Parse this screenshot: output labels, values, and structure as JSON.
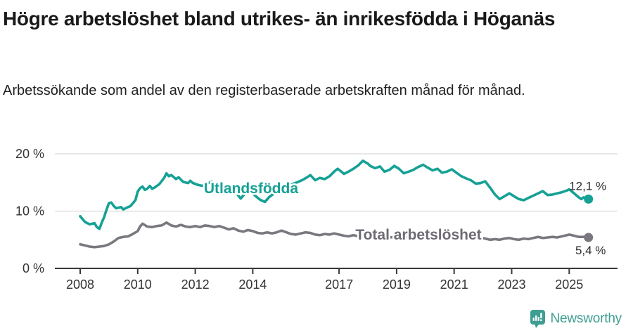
{
  "header": {
    "title": "Högre arbetslöshet bland utrikes- än inrikesfödda i Höganäs",
    "subtitle": "Arbetssökande som andel av den registerbaserade arbetskraften månad för månad."
  },
  "chart_data": {
    "type": "line",
    "title": "Högre arbetslöshet bland utrikes- än inrikesfödda i Höganäs",
    "xlabel": "",
    "ylabel": "",
    "grid": "horizontal-only",
    "legend_position": "inline-labels",
    "xlim": [
      2007.12,
      2026.68
    ],
    "ylim": [
      0,
      20
    ],
    "x_ticks": [
      2008,
      2010,
      2012,
      2014,
      2017,
      2019,
      2021,
      2023,
      2025
    ],
    "y_ticks": [
      0,
      10,
      20
    ],
    "y_tick_suffix": " %",
    "axis_color": "#3a3a3a",
    "grid_color": "#d9d9d9",
    "tick_text_color": "#333333",
    "end_label_color": "#2d2d2d",
    "series": [
      {
        "name": "Utlandsfödda",
        "color": "#16a195",
        "label_color": "#16a195",
        "end_label": "12,1 %",
        "end_value": 12.1,
        "end_label_side": "above",
        "label_anchor": {
          "x": 2013.94,
          "y": 14.0
        },
        "points": [
          [
            2008.0,
            9.1
          ],
          [
            2008.17,
            8.1
          ],
          [
            2008.33,
            7.7
          ],
          [
            2008.5,
            7.9
          ],
          [
            2008.58,
            7.2
          ],
          [
            2008.67,
            6.9
          ],
          [
            2008.75,
            8.0
          ],
          [
            2008.83,
            8.9
          ],
          [
            2008.92,
            10.3
          ],
          [
            2009.0,
            11.4
          ],
          [
            2009.08,
            11.5
          ],
          [
            2009.17,
            10.9
          ],
          [
            2009.25,
            10.5
          ],
          [
            2009.42,
            10.7
          ],
          [
            2009.5,
            10.3
          ],
          [
            2009.58,
            10.5
          ],
          [
            2009.75,
            10.9
          ],
          [
            2009.92,
            11.9
          ],
          [
            2010.0,
            13.4
          ],
          [
            2010.08,
            14.0
          ],
          [
            2010.17,
            14.3
          ],
          [
            2010.25,
            13.7
          ],
          [
            2010.33,
            13.9
          ],
          [
            2010.42,
            14.4
          ],
          [
            2010.5,
            13.9
          ],
          [
            2010.58,
            14.1
          ],
          [
            2010.75,
            14.7
          ],
          [
            2010.92,
            15.8
          ],
          [
            2011.0,
            16.6
          ],
          [
            2011.08,
            16.1
          ],
          [
            2011.17,
            16.3
          ],
          [
            2011.33,
            15.6
          ],
          [
            2011.42,
            15.9
          ],
          [
            2011.58,
            15.1
          ],
          [
            2011.75,
            14.9
          ],
          [
            2011.83,
            15.3
          ],
          [
            2011.92,
            14.9
          ],
          [
            2012.08,
            14.6
          ],
          [
            2012.25,
            14.4
          ],
          [
            2012.42,
            14.9
          ],
          [
            2012.58,
            15.1
          ],
          [
            2012.75,
            14.4
          ],
          [
            2012.92,
            14.6
          ],
          [
            2013.08,
            14.2
          ],
          [
            2013.25,
            14.0
          ],
          [
            2013.42,
            13.2
          ],
          [
            2013.58,
            12.2
          ],
          [
            2013.75,
            13.2
          ],
          [
            2013.92,
            13.5
          ],
          [
            2014.08,
            12.7
          ],
          [
            2014.25,
            12.0
          ],
          [
            2014.42,
            11.6
          ],
          [
            2014.58,
            12.5
          ],
          [
            2014.75,
            13.1
          ],
          [
            2014.92,
            13.7
          ],
          [
            2015.08,
            14.0
          ],
          [
            2015.25,
            14.4
          ],
          [
            2015.42,
            14.8
          ],
          [
            2015.58,
            15.1
          ],
          [
            2015.75,
            15.5
          ],
          [
            2015.92,
            16.0
          ],
          [
            2016.0,
            16.3
          ],
          [
            2016.17,
            15.4
          ],
          [
            2016.33,
            15.8
          ],
          [
            2016.5,
            15.6
          ],
          [
            2016.67,
            16.1
          ],
          [
            2016.83,
            16.9
          ],
          [
            2016.95,
            17.4
          ],
          [
            2017.08,
            16.9
          ],
          [
            2017.17,
            16.5
          ],
          [
            2017.33,
            16.9
          ],
          [
            2017.5,
            17.4
          ],
          [
            2017.67,
            18.0
          ],
          [
            2017.83,
            18.8
          ],
          [
            2018.0,
            18.3
          ],
          [
            2018.08,
            17.9
          ],
          [
            2018.25,
            17.5
          ],
          [
            2018.42,
            17.8
          ],
          [
            2018.58,
            16.9
          ],
          [
            2018.75,
            17.2
          ],
          [
            2018.92,
            17.9
          ],
          [
            2019.08,
            17.4
          ],
          [
            2019.25,
            16.6
          ],
          [
            2019.42,
            16.9
          ],
          [
            2019.58,
            17.2
          ],
          [
            2019.75,
            17.7
          ],
          [
            2019.92,
            18.1
          ],
          [
            2020.08,
            17.6
          ],
          [
            2020.25,
            17.1
          ],
          [
            2020.42,
            17.4
          ],
          [
            2020.58,
            16.7
          ],
          [
            2020.75,
            16.9
          ],
          [
            2020.92,
            17.3
          ],
          [
            2021.08,
            16.7
          ],
          [
            2021.25,
            16.1
          ],
          [
            2021.42,
            15.7
          ],
          [
            2021.58,
            15.4
          ],
          [
            2021.75,
            14.8
          ],
          [
            2021.92,
            14.9
          ],
          [
            2022.08,
            15.2
          ],
          [
            2022.25,
            14.1
          ],
          [
            2022.42,
            12.9
          ],
          [
            2022.58,
            12.1
          ],
          [
            2022.75,
            12.6
          ],
          [
            2022.92,
            13.1
          ],
          [
            2023.08,
            12.6
          ],
          [
            2023.25,
            12.1
          ],
          [
            2023.42,
            11.9
          ],
          [
            2023.58,
            12.3
          ],
          [
            2023.75,
            12.7
          ],
          [
            2023.92,
            13.1
          ],
          [
            2024.08,
            13.5
          ],
          [
            2024.25,
            12.8
          ],
          [
            2024.42,
            12.9
          ],
          [
            2024.58,
            13.1
          ],
          [
            2024.75,
            13.3
          ],
          [
            2024.92,
            13.6
          ],
          [
            2025.0,
            13.8
          ],
          [
            2025.17,
            13.1
          ],
          [
            2025.33,
            12.4
          ],
          [
            2025.42,
            12.1
          ],
          [
            2025.5,
            12.4
          ],
          [
            2025.67,
            12.1
          ]
        ]
      },
      {
        "name": "Total arbetslöshet",
        "color": "#7a777e",
        "label_color": "#6e6b73",
        "end_label": "5,4 %",
        "end_value": 5.4,
        "end_label_side": "below",
        "label_anchor": {
          "x": 2019.76,
          "y": 5.9
        },
        "points": [
          [
            2008.0,
            4.2
          ],
          [
            2008.17,
            4.0
          ],
          [
            2008.33,
            3.8
          ],
          [
            2008.5,
            3.7
          ],
          [
            2008.67,
            3.8
          ],
          [
            2008.83,
            3.9
          ],
          [
            2009.0,
            4.2
          ],
          [
            2009.17,
            4.7
          ],
          [
            2009.33,
            5.3
          ],
          [
            2009.5,
            5.5
          ],
          [
            2009.67,
            5.6
          ],
          [
            2009.83,
            6.0
          ],
          [
            2010.0,
            6.5
          ],
          [
            2010.08,
            7.3
          ],
          [
            2010.17,
            7.8
          ],
          [
            2010.33,
            7.3
          ],
          [
            2010.5,
            7.2
          ],
          [
            2010.67,
            7.4
          ],
          [
            2010.83,
            7.5
          ],
          [
            2011.0,
            8.0
          ],
          [
            2011.17,
            7.5
          ],
          [
            2011.33,
            7.3
          ],
          [
            2011.5,
            7.6
          ],
          [
            2011.67,
            7.3
          ],
          [
            2011.83,
            7.2
          ],
          [
            2012.0,
            7.4
          ],
          [
            2012.17,
            7.2
          ],
          [
            2012.33,
            7.5
          ],
          [
            2012.5,
            7.4
          ],
          [
            2012.67,
            7.2
          ],
          [
            2012.83,
            7.4
          ],
          [
            2013.0,
            7.1
          ],
          [
            2013.17,
            6.8
          ],
          [
            2013.33,
            7.0
          ],
          [
            2013.5,
            6.6
          ],
          [
            2013.67,
            6.4
          ],
          [
            2013.83,
            6.7
          ],
          [
            2014.0,
            6.5
          ],
          [
            2014.17,
            6.2
          ],
          [
            2014.33,
            6.1
          ],
          [
            2014.5,
            6.3
          ],
          [
            2014.67,
            6.1
          ],
          [
            2014.83,
            6.3
          ],
          [
            2015.0,
            6.6
          ],
          [
            2015.17,
            6.3
          ],
          [
            2015.33,
            6.0
          ],
          [
            2015.5,
            5.9
          ],
          [
            2015.67,
            6.1
          ],
          [
            2015.83,
            6.3
          ],
          [
            2016.0,
            6.2
          ],
          [
            2016.17,
            5.9
          ],
          [
            2016.33,
            5.8
          ],
          [
            2016.5,
            6.0
          ],
          [
            2016.67,
            5.9
          ],
          [
            2016.83,
            6.1
          ],
          [
            2017.0,
            5.9
          ],
          [
            2017.17,
            5.7
          ],
          [
            2017.33,
            5.6
          ],
          [
            2017.5,
            5.8
          ],
          [
            2017.67,
            5.6
          ],
          [
            2017.83,
            5.7
          ],
          [
            2018.0,
            5.6
          ],
          [
            2018.25,
            5.5
          ],
          [
            2018.5,
            5.6
          ],
          [
            2018.75,
            5.4
          ],
          [
            2019.0,
            5.5
          ],
          [
            2019.25,
            5.4
          ],
          [
            2019.5,
            5.5
          ],
          [
            2019.75,
            5.4
          ],
          [
            2020.0,
            5.6
          ],
          [
            2020.25,
            5.8
          ],
          [
            2020.5,
            5.7
          ],
          [
            2020.75,
            5.6
          ],
          [
            2021.0,
            5.7
          ],
          [
            2021.25,
            5.5
          ],
          [
            2021.5,
            5.4
          ],
          [
            2021.75,
            5.3
          ],
          [
            2021.92,
            5.4
          ],
          [
            2022.08,
            5.2
          ],
          [
            2022.25,
            5.0
          ],
          [
            2022.42,
            5.1
          ],
          [
            2022.58,
            5.0
          ],
          [
            2022.75,
            5.2
          ],
          [
            2022.92,
            5.3
          ],
          [
            2023.08,
            5.1
          ],
          [
            2023.25,
            5.0
          ],
          [
            2023.42,
            5.2
          ],
          [
            2023.58,
            5.1
          ],
          [
            2023.75,
            5.3
          ],
          [
            2023.92,
            5.5
          ],
          [
            2024.08,
            5.3
          ],
          [
            2024.25,
            5.4
          ],
          [
            2024.42,
            5.5
          ],
          [
            2024.58,
            5.4
          ],
          [
            2024.75,
            5.6
          ],
          [
            2024.92,
            5.8
          ],
          [
            2025.0,
            5.9
          ],
          [
            2025.17,
            5.7
          ],
          [
            2025.33,
            5.5
          ],
          [
            2025.5,
            5.5
          ],
          [
            2025.67,
            5.4
          ]
        ]
      }
    ]
  },
  "footer": {
    "brand": "Newsworthy",
    "brand_color": "#3f9e92",
    "logo_icon": "bar-chart-speech-bubble-icon"
  }
}
